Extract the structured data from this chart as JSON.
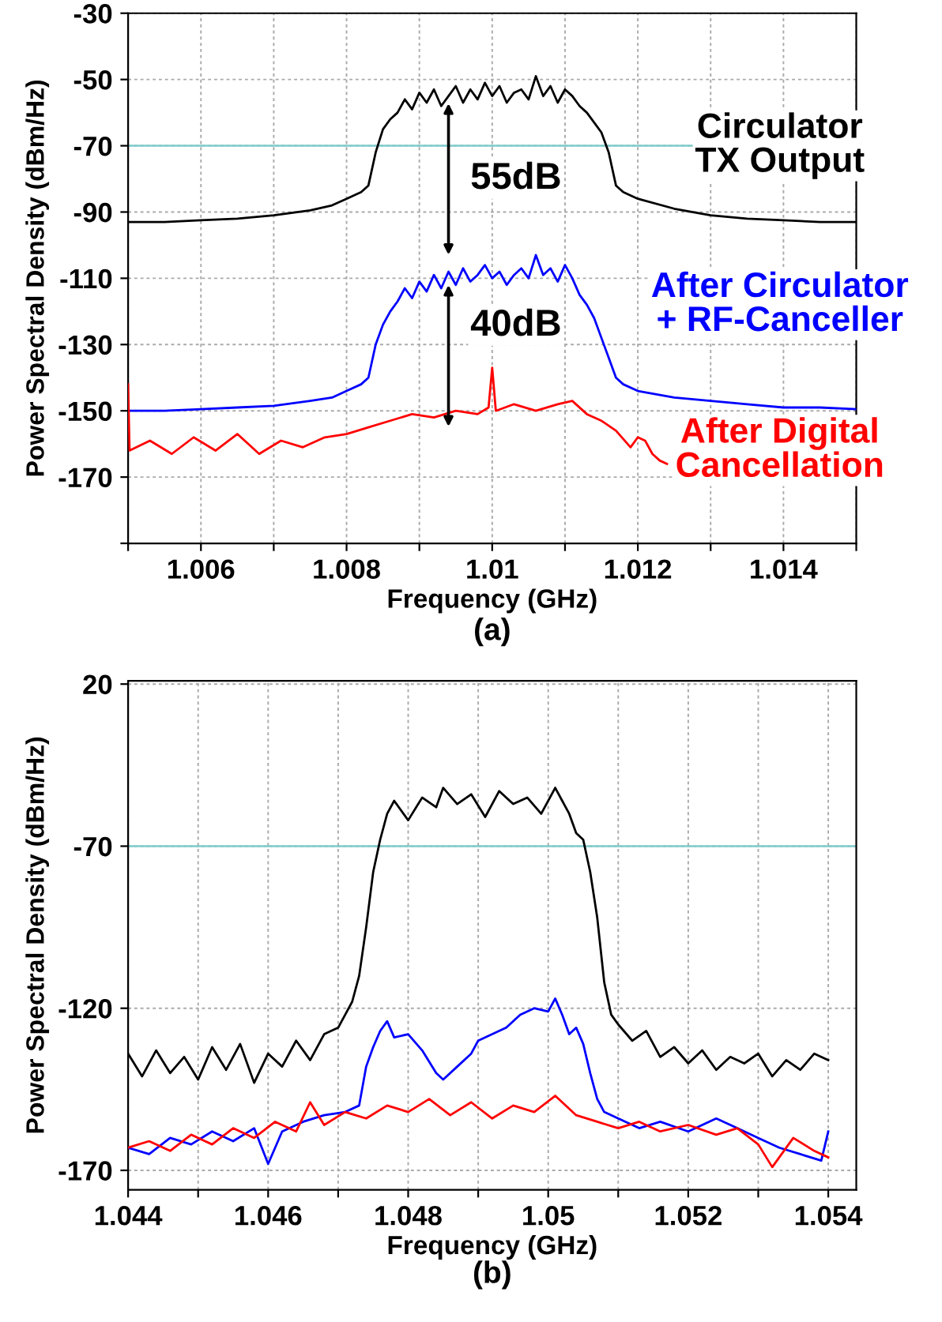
{
  "chart_data": [
    {
      "type": "line",
      "title": "(a)",
      "xlabel": "Frequency (GHz)",
      "ylabel": "Power Spectral Density (dBm/Hz)",
      "xlim": [
        1.005,
        1.015
      ],
      "ylim": [
        -190,
        -30
      ],
      "xticks": [
        {
          "value": 1.005,
          "label": null
        },
        1.006,
        {
          "value": 1.007,
          "label": null
        },
        1.008,
        {
          "value": 1.009,
          "label": null
        },
        1.01,
        {
          "value": 1.011,
          "label": null
        },
        1.012,
        {
          "value": 1.013,
          "label": null
        },
        1.014,
        {
          "value": 1.015,
          "label": null
        }
      ],
      "yticks": [
        -30,
        -50,
        -70,
        -90,
        -110,
        -130,
        -150,
        -170,
        {
          "value": -190,
          "label": null
        }
      ],
      "grid": true,
      "legend": false,
      "ref_lines": [
        {
          "axis": "y",
          "value": -70,
          "color": "#7fcccc"
        }
      ],
      "annotations": [
        "55dB",
        "40dB"
      ],
      "series": [
        {
          "name": "Circulator\nTX Output",
          "color": "#000000",
          "x": [
            1.005,
            1.0055,
            1.006,
            1.0065,
            1.007,
            1.0075,
            1.0078,
            1.008,
            1.0082,
            1.0083,
            1.0084,
            1.0085,
            1.0086,
            1.0087,
            1.0088,
            1.0089,
            1.009,
            1.0091,
            1.0092,
            1.0093,
            1.0094,
            1.0095,
            1.0096,
            1.0097,
            1.0098,
            1.0099,
            1.01,
            1.0101,
            1.0102,
            1.0103,
            1.0104,
            1.0105,
            1.0106,
            1.0107,
            1.0108,
            1.0109,
            1.011,
            1.0111,
            1.0112,
            1.0113,
            1.0114,
            1.0115,
            1.0116,
            1.0117,
            1.0118,
            1.012,
            1.0125,
            1.013,
            1.0135,
            1.014,
            1.0145,
            1.015
          ],
          "values": [
            -93,
            -93,
            -92.5,
            -92,
            -91,
            -89.5,
            -88,
            -86,
            -84,
            -82,
            -72,
            -65,
            -62,
            -60,
            -56,
            -59,
            -54,
            -57,
            -53,
            -58,
            -55,
            -52,
            -57,
            -53,
            -56,
            -51,
            -55,
            -52,
            -57,
            -54,
            -53,
            -56,
            -49,
            -55,
            -52,
            -57,
            -53,
            -55,
            -58,
            -60,
            -63,
            -66,
            -72,
            -82,
            -84,
            -86,
            -89,
            -91,
            -92,
            -92.5,
            -93,
            -93
          ]
        },
        {
          "name": "After Circulator\n+ RF-Canceller",
          "color": "#0000ff",
          "x": [
            1.005,
            1.0055,
            1.006,
            1.0065,
            1.007,
            1.0075,
            1.0078,
            1.008,
            1.0082,
            1.0083,
            1.0084,
            1.0085,
            1.0086,
            1.0087,
            1.0088,
            1.0089,
            1.009,
            1.0091,
            1.0092,
            1.0093,
            1.0094,
            1.0095,
            1.0096,
            1.0097,
            1.0098,
            1.0099,
            1.01,
            1.0101,
            1.0102,
            1.0103,
            1.0104,
            1.0105,
            1.0106,
            1.0107,
            1.0108,
            1.0109,
            1.011,
            1.0111,
            1.0112,
            1.0113,
            1.0114,
            1.0115,
            1.0116,
            1.0117,
            1.0118,
            1.012,
            1.0125,
            1.013,
            1.0135,
            1.014,
            1.0145,
            1.015
          ],
          "values": [
            -150,
            -150,
            -149.5,
            -149,
            -148.5,
            -147,
            -146,
            -144,
            -142,
            -140,
            -130,
            -124,
            -120,
            -117,
            -113,
            -116,
            -111,
            -114,
            -109,
            -113,
            -108,
            -112,
            -107,
            -111,
            -109,
            -106,
            -110,
            -108,
            -112,
            -109,
            -107,
            -110,
            -103,
            -109,
            -107,
            -111,
            -106,
            -110,
            -115,
            -118,
            -122,
            -128,
            -134,
            -140,
            -142,
            -144,
            -146,
            -147,
            -148,
            -149,
            -149,
            -149.5
          ]
        },
        {
          "name": "After Digital\nCancellation",
          "color": "#ff0000",
          "x": [
            1.005,
            1.00502,
            1.0053,
            1.0056,
            1.0059,
            1.0062,
            1.0065,
            1.0068,
            1.0071,
            1.0074,
            1.0077,
            1.008,
            1.0083,
            1.0086,
            1.0089,
            1.0092,
            1.0095,
            1.0098,
            1.00995,
            1.01,
            1.01005,
            1.0103,
            1.0106,
            1.0109,
            1.0111,
            1.0113,
            1.0115,
            1.0117,
            1.0119,
            1.012,
            1.0121,
            1.0122,
            1.0123,
            1.0124
          ],
          "values": [
            -142,
            -162,
            -159,
            -163,
            -158,
            -162,
            -157,
            -163,
            -159,
            -161,
            -158,
            -157,
            -155,
            -153,
            -151,
            -152,
            -150,
            -151,
            -149,
            -137,
            -150,
            -148,
            -150,
            -148,
            -147,
            -151,
            -153,
            -156,
            -161,
            -158,
            -159,
            -163,
            -165,
            -166
          ]
        }
      ]
    },
    {
      "type": "line",
      "title": "(b)",
      "xlabel": "Frequency (GHz)",
      "ylabel": "Power Spectral Density (dBm/Hz)",
      "xlim": [
        1.044,
        1.0544
      ],
      "ylim": [
        -176,
        -19
      ],
      "xticks": [
        1.044,
        {
          "value": 1.045,
          "label": null
        },
        1.046,
        {
          "value": 1.047,
          "label": null
        },
        1.048,
        {
          "value": 1.049,
          "label": null
        },
        1.05,
        {
          "value": 1.051,
          "label": null
        },
        1.052,
        {
          "value": 1.053,
          "label": null
        },
        1.054
      ],
      "yticks": [
        {
          "value": -20,
          "label": "20"
        },
        -70,
        -120,
        -170
      ],
      "grid": true,
      "legend": false,
      "ref_lines": [
        {
          "axis": "y",
          "value": -70,
          "color": "#7fcccc"
        }
      ],
      "series": [
        {
          "color": "#000000",
          "x": [
            1.044,
            1.0442,
            1.0444,
            1.0446,
            1.0448,
            1.045,
            1.0452,
            1.0454,
            1.0456,
            1.0458,
            1.046,
            1.0462,
            1.0464,
            1.0466,
            1.0468,
            1.047,
            1.0472,
            1.0473,
            1.0474,
            1.0475,
            1.0476,
            1.0477,
            1.0478,
            1.048,
            1.0482,
            1.0484,
            1.0485,
            1.0487,
            1.0489,
            1.0491,
            1.0493,
            1.0495,
            1.0497,
            1.0499,
            1.0501,
            1.0502,
            1.0503,
            1.0504,
            1.0505,
            1.0506,
            1.0507,
            1.0508,
            1.0509,
            1.051,
            1.0512,
            1.0514,
            1.0516,
            1.0518,
            1.052,
            1.0522,
            1.0524,
            1.0526,
            1.0528,
            1.053,
            1.0532,
            1.0534,
            1.0536,
            1.0538,
            1.054
          ],
          "values": [
            -134,
            -141,
            -133,
            -140,
            -135,
            -142,
            -132,
            -139,
            -131,
            -143,
            -134,
            -138,
            -130,
            -136,
            -128,
            -126,
            -118,
            -110,
            -95,
            -78,
            -68,
            -60,
            -56,
            -62,
            -55,
            -58,
            -52,
            -57,
            -54,
            -61,
            -53,
            -57,
            -55,
            -60,
            -52,
            -56,
            -60,
            -66,
            -68,
            -78,
            -92,
            -112,
            -122,
            -125,
            -130,
            -127,
            -135,
            -132,
            -137,
            -133,
            -139,
            -135,
            -137,
            -134,
            -141,
            -136,
            -139,
            -134,
            -136
          ]
        },
        {
          "color": "#0000ff",
          "x": [
            1.044,
            1.0443,
            1.0446,
            1.0449,
            1.0452,
            1.0455,
            1.0458,
            1.046,
            1.0462,
            1.0465,
            1.0468,
            1.0471,
            1.0473,
            1.0474,
            1.0475,
            1.0476,
            1.0477,
            1.0478,
            1.048,
            1.0482,
            1.0484,
            1.0485,
            1.0487,
            1.0489,
            1.049,
            1.0492,
            1.0494,
            1.0496,
            1.0498,
            1.05,
            1.0501,
            1.0502,
            1.0503,
            1.0504,
            1.0505,
            1.0506,
            1.0507,
            1.0508,
            1.051,
            1.0513,
            1.0516,
            1.052,
            1.0524,
            1.0527,
            1.053,
            1.0533,
            1.0536,
            1.0539,
            1.054
          ],
          "values": [
            -163,
            -165,
            -160,
            -162,
            -158,
            -161,
            -157,
            -168,
            -158,
            -155,
            -153,
            -152,
            -150,
            -138,
            -132,
            -127,
            -124,
            -129,
            -128,
            -133,
            -140,
            -142,
            -138,
            -134,
            -130,
            -128,
            -126,
            -122,
            -120,
            -121,
            -117,
            -122,
            -128,
            -126,
            -131,
            -140,
            -148,
            -152,
            -154,
            -157,
            -155,
            -158,
            -154,
            -157,
            -160,
            -163,
            -165,
            -167,
            -158
          ]
        },
        {
          "color": "#ff0000",
          "x": [
            1.044,
            1.0443,
            1.0446,
            1.0449,
            1.0452,
            1.0455,
            1.0458,
            1.0461,
            1.0464,
            1.0466,
            1.0468,
            1.0471,
            1.0474,
            1.0477,
            1.048,
            1.0483,
            1.0486,
            1.0489,
            1.0492,
            1.0495,
            1.0498,
            1.0501,
            1.0504,
            1.0507,
            1.051,
            1.0513,
            1.0516,
            1.052,
            1.0524,
            1.0527,
            1.053,
            1.0532,
            1.0535,
            1.0538,
            1.054
          ],
          "values": [
            -163,
            -161,
            -164,
            -159,
            -162,
            -157,
            -160,
            -155,
            -158,
            -149,
            -156,
            -152,
            -154,
            -150,
            -152,
            -148,
            -153,
            -149,
            -154,
            -150,
            -152,
            -147,
            -153,
            -155,
            -157,
            -155,
            -158,
            -156,
            -159,
            -157,
            -162,
            -169,
            -160,
            -164,
            -166
          ]
        }
      ]
    }
  ]
}
